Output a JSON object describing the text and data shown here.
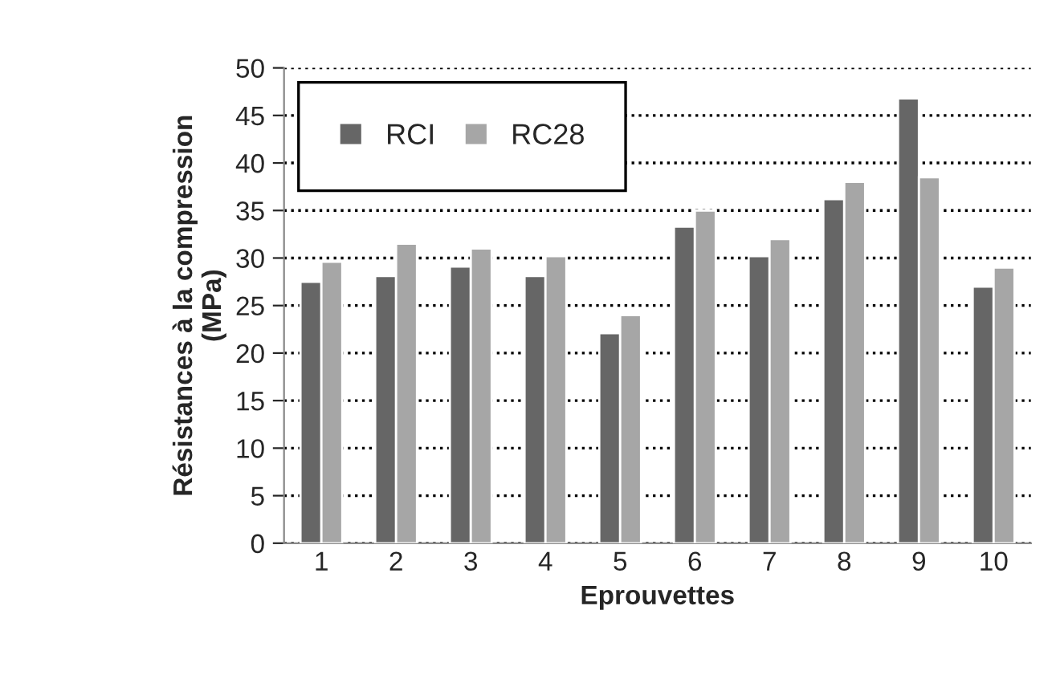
{
  "chart_data": {
    "type": "bar",
    "xlabel": "Eprouvettes",
    "ylabel": "Résistances à la compression\n(MPa)",
    "categories": [
      "1",
      "2",
      "3",
      "4",
      "5",
      "6",
      "7",
      "8",
      "9",
      "10"
    ],
    "series": [
      {
        "name": "RCI",
        "color": "#666666",
        "values": [
          27.5,
          28.1,
          29.1,
          28.1,
          22.1,
          33.3,
          30.2,
          36.2,
          46.8,
          27.0
        ]
      },
      {
        "name": "RC28",
        "color": "#a6a6a6",
        "values": [
          29.6,
          31.5,
          31.0,
          30.2,
          24.0,
          35.0,
          32.0,
          38.0,
          38.5,
          29.0
        ]
      }
    ],
    "ylim": [
      0,
      50
    ],
    "yticks": [
      0,
      5,
      10,
      15,
      20,
      25,
      30,
      35,
      40,
      45,
      50
    ],
    "grid": "y",
    "line_style": "dotted",
    "legend": "top left"
  }
}
